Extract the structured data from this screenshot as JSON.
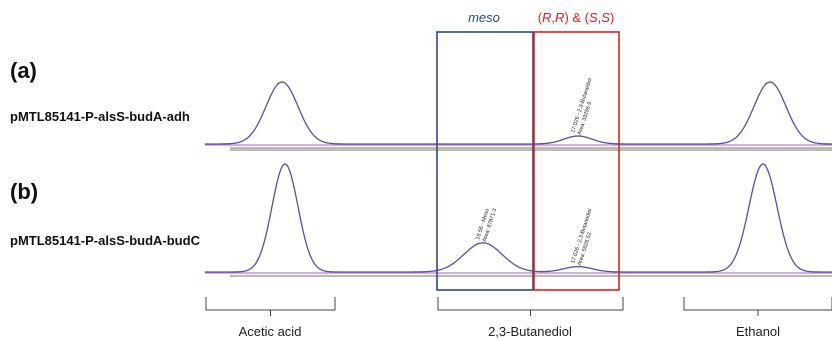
{
  "chart_data": {
    "type": "line",
    "panels": [
      {
        "label": "(a)",
        "sample": "pMTL85141-P-alsS-budA-adh",
        "peaks": [
          {
            "compound": "Acetic acid",
            "height": 0.62,
            "annotation": []
          },
          {
            "compound": "(R,R) & (S,S)",
            "height": 0.08,
            "annotation": [
              "17.026 - 2,3-Butanediol",
              "Area: 33256.9"
            ]
          },
          {
            "compound": "Ethanol",
            "height": 0.62,
            "annotation": []
          }
        ]
      },
      {
        "label": "(b)",
        "sample": "pMTL85141-P-alsS-budA-budC",
        "peaks": [
          {
            "compound": "Acetic acid",
            "height": 1.0,
            "annotation": []
          },
          {
            "compound": "meso",
            "height": 0.27,
            "annotation": [
              "16.56 - Meso",
              "Area: 87871.3"
            ]
          },
          {
            "compound": "(R,R) & (S,S)",
            "height": 0.05,
            "annotation": [
              "17.026 - 2,3-Butanediol",
              "Area: 5526.52"
            ]
          },
          {
            "compound": "Ethanol",
            "height": 1.0,
            "annotation": []
          }
        ]
      }
    ],
    "boxes": {
      "meso": {
        "title": "meso",
        "color": "#2e4a7a"
      },
      "rrss": {
        "title_parts": [
          "(",
          "R",
          ",",
          "R",
          ") & (",
          "S",
          ",",
          "S",
          ")"
        ],
        "color": "#e02020"
      }
    },
    "regions": [
      "Acetic acid",
      "2,3-Butanediol",
      "Ethanol"
    ],
    "colors": {
      "trace": "#5a4fa8",
      "baseline": "#c27ad0",
      "separator": "#777777"
    }
  }
}
